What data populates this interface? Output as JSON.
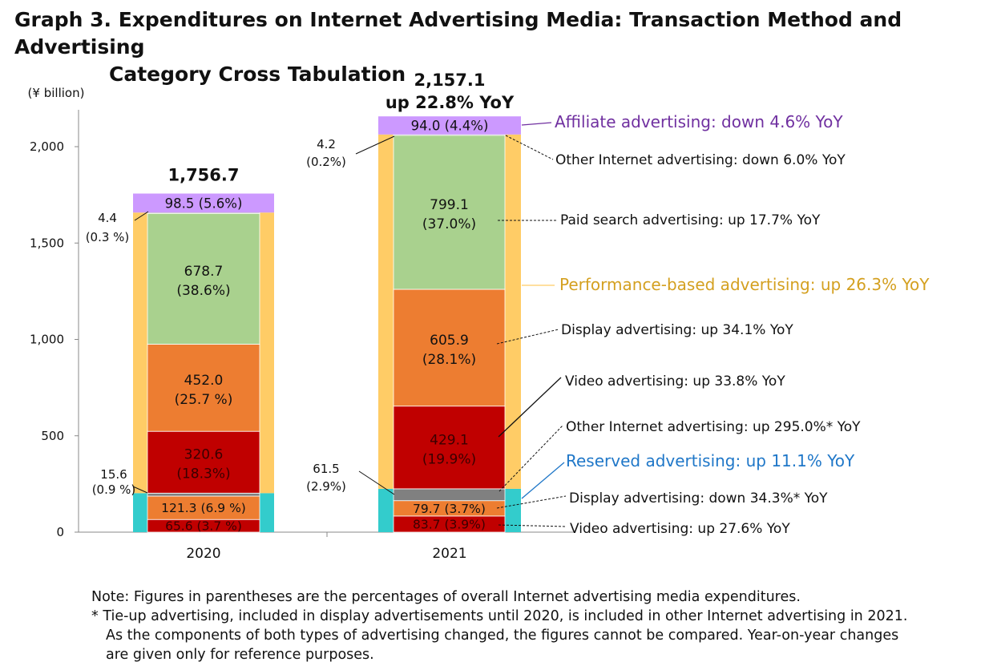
{
  "title": {
    "line1": "Graph 3. Expenditures on Internet Advertising Media: Transaction Method and Advertising",
    "line2": "Category Cross Tabulation"
  },
  "colors": {
    "affiliate": "#cc99ff",
    "paid_search": "#a9d18e",
    "display": "#ed7d31",
    "video": "#c00000",
    "other": "#808080",
    "performance_frame": "#ffcc66",
    "reserved_frame": "#33cccc",
    "affiliate_label": "#7030a0",
    "performance_label": "#d4a020",
    "reserved_label": "#1f77c8"
  },
  "chart_data": {
    "type": "bar",
    "stacked": true,
    "unit_label": "(¥ billion)",
    "ylim": [
      0,
      2200
    ],
    "yticks": [
      0,
      500,
      1000,
      1500,
      2000
    ],
    "ytick_labels": [
      "0",
      "500",
      "1,000",
      "1,500",
      "2,000"
    ],
    "categories": [
      "2020",
      "2021"
    ],
    "totals": [
      {
        "lines": [
          "1,756.7"
        ]
      },
      {
        "lines": [
          "2,157.1",
          "up 22.8% YoY"
        ]
      }
    ],
    "years": [
      {
        "year": "2020",
        "reserved": [
          {
            "key": "video",
            "value": 65.6,
            "label": "65.6 (3.7 %)"
          },
          {
            "key": "display",
            "value": 121.3,
            "label": "121.3 (6.9 %)"
          },
          {
            "key": "other",
            "value": 15.6,
            "label": ""
          }
        ],
        "performance": [
          {
            "key": "video",
            "value": 320.6,
            "label": "320.6",
            "pct": "(18.3%)"
          },
          {
            "key": "display",
            "value": 452.0,
            "label": "452.0",
            "pct": "(25.7 %)"
          },
          {
            "key": "paid_search",
            "value": 678.7,
            "label": "678.7",
            "pct": "(38.6%)"
          },
          {
            "key": "other",
            "value": 4.4,
            "label": ""
          }
        ],
        "affiliate": {
          "value": 98.5,
          "label": "98.5 (5.6%)"
        },
        "callouts": [
          {
            "l1": "4.4",
            "l2": "(0.3 %)"
          },
          {
            "l1": "15.6",
            "l2": "(0.9 %)"
          }
        ]
      },
      {
        "year": "2021",
        "reserved": [
          {
            "key": "video",
            "value": 83.7,
            "label": "83.7 (3.9%)"
          },
          {
            "key": "display",
            "value": 79.7,
            "label": "79.7 (3.7%)"
          },
          {
            "key": "other",
            "value": 61.5,
            "label": ""
          }
        ],
        "performance": [
          {
            "key": "video",
            "value": 429.1,
            "label": "429.1",
            "pct": "(19.9%)"
          },
          {
            "key": "display",
            "value": 605.9,
            "label": "605.9",
            "pct": "(28.1%)"
          },
          {
            "key": "paid_search",
            "value": 799.1,
            "label": "799.1",
            "pct": "(37.0%)"
          },
          {
            "key": "other",
            "value": 4.2,
            "label": ""
          }
        ],
        "affiliate": {
          "value": 94.0,
          "label": "94.0 (4.4%)"
        },
        "callouts": [
          {
            "l1": "4.2",
            "l2": "(0.2%)"
          },
          {
            "l1": "61.5",
            "l2": "(2.9%)"
          }
        ]
      }
    ],
    "annotations": [
      {
        "key": "affiliate",
        "text": "Affiliate advertising: down 4.6% YoY",
        "style": "affiliate"
      },
      {
        "key": "perf_other",
        "text": "Other Internet advertising: down 6.0% YoY",
        "style": "normal"
      },
      {
        "key": "paid_search",
        "text": "Paid search advertising: up 17.7% YoY",
        "style": "normal"
      },
      {
        "key": "performance",
        "text": "Performance-based advertising: up 26.3% YoY",
        "style": "performance"
      },
      {
        "key": "perf_display",
        "text": "Display advertising: up 34.1% YoY",
        "style": "normal"
      },
      {
        "key": "perf_video",
        "text": "Video advertising: up 33.8% YoY",
        "style": "normal"
      },
      {
        "key": "res_other",
        "text": "Other Internet advertising: up 295.0%* YoY",
        "style": "normal"
      },
      {
        "key": "reserved",
        "text": "Reserved advertising: up 11.1% YoY",
        "style": "reserved"
      },
      {
        "key": "res_display",
        "text": "Display advertising: down 34.3%* YoY",
        "style": "normal"
      },
      {
        "key": "res_video",
        "text": "Video advertising: up 27.6% YoY",
        "style": "normal"
      }
    ]
  },
  "notes": {
    "line1": "Note: Figures in parentheses are the percentages of overall Internet advertising media expenditures.",
    "line2": "* Tie-up advertising, included in display advertisements until 2020, is included in other Internet advertising in 2021.",
    "line3": "As the components of both types of advertising changed, the figures cannot be compared. Year-on-year changes",
    "line4": "are given only for reference purposes."
  }
}
